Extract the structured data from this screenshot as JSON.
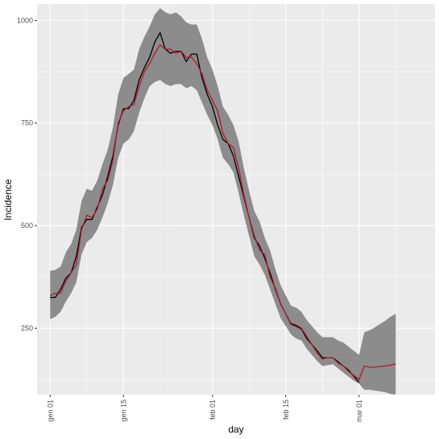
{
  "chart_data": {
    "type": "line",
    "xlabel": "day",
    "ylabel": "Incidence",
    "ylim": [
      88,
      1040
    ],
    "xlim": [
      -2.5,
      73.5
    ],
    "grid": true,
    "background": "#ebebeb",
    "colors": {
      "observed": "#000000",
      "fitted": "#b2182b",
      "band": "#8c8c8c",
      "grid": "#ffffff"
    },
    "x_ticks": [
      {
        "day": 0,
        "label": "gen 01"
      },
      {
        "day": 14,
        "label": "gen 15"
      },
      {
        "day": 31,
        "label": "feb 01"
      },
      {
        "day": 45,
        "label": "feb 15"
      },
      {
        "day": 59,
        "label": "mar 01"
      }
    ],
    "y_ticks": [
      {
        "value": 250,
        "label": "250"
      },
      {
        "value": 500,
        "label": "500"
      },
      {
        "value": 750,
        "label": "750"
      },
      {
        "value": 1000,
        "label": "1000"
      }
    ],
    "x": [
      0,
      1,
      2,
      3,
      4,
      5,
      6,
      7,
      8,
      9,
      10,
      11,
      12,
      13,
      14,
      15,
      16,
      17,
      18,
      19,
      20,
      21,
      22,
      23,
      24,
      25,
      26,
      27,
      28,
      29,
      30,
      31,
      32,
      33,
      34,
      35,
      36,
      37,
      38,
      39,
      40,
      41,
      42,
      43,
      44,
      45,
      46,
      47,
      48,
      49,
      50,
      51,
      52,
      53,
      54,
      55,
      56,
      57,
      58,
      59,
      60,
      61,
      62,
      63,
      64,
      65,
      66,
      67
    ],
    "series": [
      {
        "role": "observed",
        "values": [
          325,
          325,
          345,
          372,
          385,
          425,
          495,
          515,
          515,
          545,
          575,
          620,
          670,
          745,
          785,
          785,
          805,
          855,
          885,
          910,
          948,
          970,
          930,
          920,
          925,
          925,
          900,
          918,
          918,
          860,
          820,
          790,
          745,
          710,
          700,
          670,
          620,
          570,
          520,
          470,
          450,
          420,
          385,
          345,
          310,
          285,
          260,
          255,
          248,
          225,
          210,
          195,
          178,
          178,
          178,
          168,
          158,
          148,
          133,
          118,
          null,
          null,
          null,
          null,
          null,
          null,
          null,
          null
        ]
      },
      {
        "role": "fitted",
        "values": [
          330,
          335,
          335,
          365,
          385,
          405,
          490,
          525,
          520,
          540,
          590,
          610,
          660,
          750,
          780,
          790,
          795,
          840,
          875,
          895,
          920,
          940,
          930,
          930,
          920,
          925,
          910,
          910,
          895,
          870,
          830,
          805,
          780,
          725,
          700,
          690,
          640,
          575,
          520,
          475,
          440,
          430,
          375,
          348,
          310,
          285,
          262,
          258,
          250,
          230,
          210,
          190,
          175,
          178,
          178,
          165,
          158,
          145,
          135,
          125,
          158,
          155,
          155,
          157,
          158,
          160,
          163,
          null
        ]
      }
    ],
    "band": {
      "lower": [
        272,
        278,
        290,
        315,
        335,
        362,
        430,
        460,
        470,
        490,
        520,
        555,
        600,
        665,
        700,
        710,
        730,
        775,
        810,
        840,
        850,
        855,
        845,
        840,
        845,
        845,
        835,
        840,
        830,
        800,
        770,
        745,
        710,
        665,
        650,
        630,
        580,
        525,
        475,
        425,
        405,
        380,
        345,
        310,
        275,
        255,
        235,
        225,
        220,
        200,
        185,
        170,
        158,
        160,
        162,
        152,
        142,
        132,
        122,
        115,
        100,
        100,
        98,
        96,
        94,
        90,
        88,
        null
      ],
      "upper": [
        390,
        392,
        400,
        435,
        455,
        490,
        560,
        590,
        585,
        610,
        650,
        685,
        740,
        820,
        860,
        870,
        880,
        930,
        960,
        985,
        1015,
        1030,
        1020,
        1015,
        1020,
        1010,
        995,
        990,
        990,
        955,
        910,
        880,
        840,
        790,
        770,
        745,
        705,
        640,
        585,
        535,
        510,
        470,
        440,
        395,
        355,
        330,
        305,
        300,
        290,
        270,
        255,
        240,
        228,
        228,
        228,
        220,
        215,
        205,
        195,
        185,
        240,
        245,
        252,
        260,
        268,
        278,
        285,
        null
      ]
    }
  }
}
